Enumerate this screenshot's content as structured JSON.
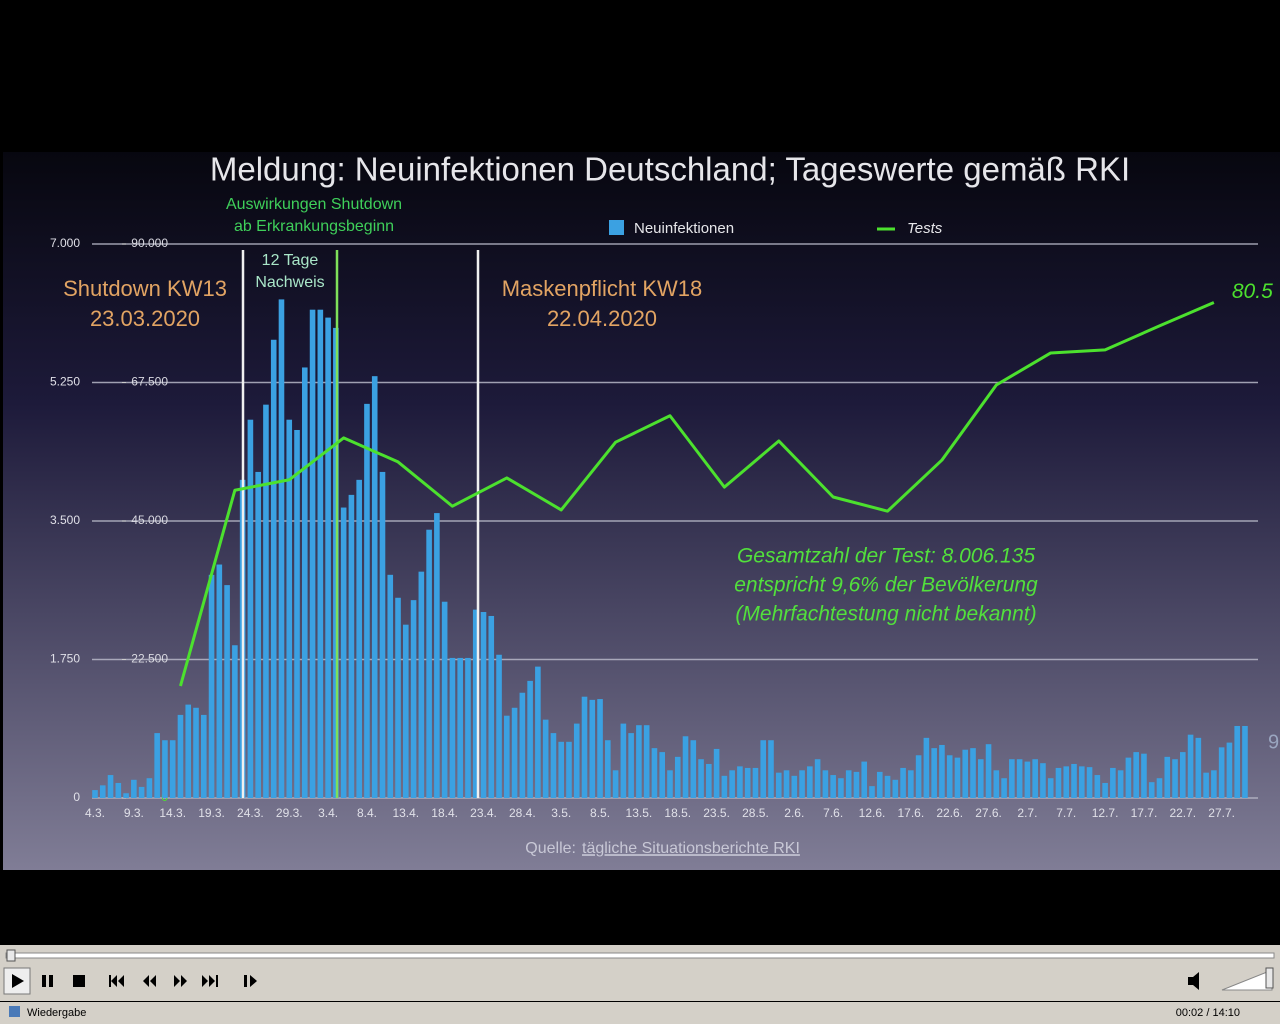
{
  "chart_data": {
    "type": "bar-line",
    "title": "Meldung: Neuinfektionen Deutschland; Tageswerte gemäß RKI",
    "annotations": {
      "effect_1": "Auswirkungen Shutdown",
      "effect_2": "ab Erkrankungsbeginn",
      "delay_1": "12 Tage",
      "delay_2": "Nachweis",
      "shutdown_1": "Shutdown KW13",
      "shutdown_2": "23.03.2020",
      "mask_1": "Maskenpflicht KW18",
      "mask_2": "22.04.2020",
      "total_1": "Gesamtzahl der Test: 8.006.135",
      "total_2": "entspricht 9,6% der Bevölkerung",
      "total_3": "(Mehrfachtestung nicht bekannt)",
      "source_label": "Quelle:",
      "source_link": "tägliche Situationsberichte RKI",
      "edge_label": "9"
    },
    "categories": [
      "4.3.",
      null,
      null,
      null,
      null,
      "9.3.",
      null,
      null,
      null,
      null,
      "14.3.",
      null,
      null,
      null,
      null,
      "19.3.",
      null,
      null,
      null,
      null,
      "24.3.",
      null,
      null,
      null,
      null,
      "29.3.",
      null,
      null,
      null,
      null,
      "3.4.",
      null,
      null,
      null,
      null,
      "8.4.",
      null,
      null,
      null,
      null,
      "13.4.",
      null,
      null,
      null,
      null,
      "18.4.",
      null,
      null,
      null,
      null,
      "23.4.",
      null,
      null,
      null,
      null,
      "28.4.",
      null,
      null,
      null,
      null,
      "3.5.",
      null,
      null,
      null,
      null,
      "8.5.",
      null,
      null,
      null,
      null,
      "13.5.",
      null,
      null,
      null,
      null,
      "18.5.",
      null,
      null,
      null,
      null,
      "23.5.",
      null,
      null,
      null,
      null,
      "28.5.",
      null,
      null,
      null,
      null,
      "2.6.",
      null,
      null,
      null,
      null,
      "7.6.",
      null,
      null,
      null,
      null,
      "12.6.",
      null,
      null,
      null,
      null,
      "17.6.",
      null,
      null,
      null,
      null,
      "22.6.",
      null,
      null,
      null,
      null,
      "27.6.",
      null,
      null,
      null,
      null,
      "2.7.",
      null,
      null,
      null,
      null,
      "7.7.",
      null,
      null,
      null,
      null,
      "12.7.",
      null,
      null,
      null,
      null,
      "17.7.",
      null,
      null,
      null,
      null,
      "22.7.",
      null,
      null,
      null,
      null,
      "27.7.",
      null,
      null,
      null
    ],
    "series": [
      {
        "name": "Neuinfektionen",
        "color": "#3ba1e2",
        "values": [
          100,
          160,
          290,
          190,
          60,
          230,
          140,
          250,
          820,
          730,
          730,
          1050,
          1180,
          1140,
          1050,
          2820,
          2950,
          2690,
          1930,
          4020,
          4780,
          4120,
          4970,
          5790,
          6300,
          4780,
          4650,
          5440,
          6170,
          6170,
          6070,
          5940,
          3670,
          3830,
          4020,
          4980,
          5330,
          4120,
          2820,
          2530,
          2190,
          2500,
          2860,
          3390,
          3600,
          2480,
          1770,
          1770,
          1770,
          2380,
          2350,
          2300,
          1810,
          1040,
          1140,
          1330,
          1480,
          1660,
          990,
          820,
          710,
          710,
          940,
          1280,
          1240,
          1250,
          730,
          350,
          940,
          820,
          920,
          920,
          630,
          580,
          350,
          520,
          780,
          730,
          490,
          430,
          620,
          280,
          350,
          400,
          380,
          380,
          730,
          730,
          320,
          350,
          280,
          350,
          400,
          490,
          350,
          290,
          250,
          350,
          330,
          460,
          150,
          330,
          280,
          230,
          380,
          350,
          540,
          760,
          630,
          670,
          540,
          510,
          610,
          630,
          490,
          680,
          350,
          250,
          490,
          490,
          460,
          490,
          440,
          250,
          380,
          400,
          430,
          400,
          390,
          290,
          190,
          380,
          350,
          510,
          580,
          560,
          200,
          250,
          520,
          490,
          580,
          800,
          760,
          320,
          350,
          640,
          700,
          910,
          910
        ]
      },
      {
        "name": "Tests",
        "color": "#4ce12e",
        "axis": "y2",
        "x": [
          "15.3.",
          "22.3.",
          "29.3.",
          "5.4.",
          "12.4.",
          "19.4.",
          "26.4.",
          "3.5.",
          "10.5.",
          "17.5.",
          "24.5.",
          "31.5.",
          "7.6.",
          "14.6.",
          "21.6.",
          "28.6.",
          "5.7.",
          "12.7.",
          "19.7.",
          "26.7."
        ],
        "values": [
          18200,
          50000,
          51700,
          58500,
          54600,
          47400,
          52000,
          46800,
          57800,
          62100,
          50500,
          58000,
          48900,
          46600,
          54900,
          67100,
          72300,
          72800,
          76700,
          80500
        ],
        "value_labels": [
          null,
          null,
          null,
          null,
          null,
          null,
          null,
          null,
          null,
          null,
          null,
          null,
          null,
          null,
          null,
          null,
          null,
          null,
          null,
          "80.5"
        ]
      }
    ],
    "ylim": [
      0,
      7000
    ],
    "yticks": [
      0,
      {
        "value": 1750,
        "label": "1.750"
      },
      {
        "value": 3500,
        "label": "3.500"
      },
      {
        "value": 5250,
        "label": "5.250"
      },
      {
        "value": 7000,
        "label": "7.000"
      }
    ],
    "y2lim": [
      0,
      90000
    ],
    "y2ticks": [
      0,
      {
        "value": 22500,
        "label": "22.500"
      },
      {
        "value": 45000,
        "label": "45.000"
      },
      {
        "value": 67500,
        "label": "67.500"
      },
      {
        "value": 90000,
        "label": "90.000"
      }
    ],
    "grid": true
  },
  "player": {
    "status": "Wiedergabe",
    "time": "00:02 / 14:10"
  }
}
